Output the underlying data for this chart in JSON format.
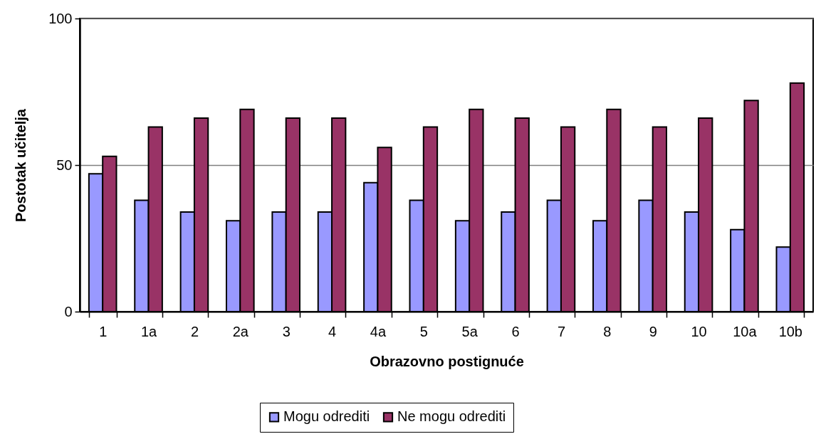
{
  "chart_data": {
    "type": "bar",
    "xlabel": "Obrazovno postignuće",
    "ylabel": "Postotak učitelja",
    "categories": [
      "1",
      "1a",
      "2",
      "2a",
      "3",
      "4",
      "4a",
      "5",
      "5a",
      "6",
      "7",
      "8",
      "9",
      "10",
      "10a",
      "10b"
    ],
    "series": [
      {
        "name": "Mogu odrediti",
        "color": "#9999ff",
        "values": [
          47,
          38,
          34,
          31,
          34,
          34,
          44,
          38,
          31,
          34,
          38,
          31,
          38,
          34,
          28,
          22
        ]
      },
      {
        "name": "Ne mogu odrediti",
        "color": "#993366",
        "values": [
          53,
          63,
          66,
          69,
          66,
          66,
          56,
          63,
          69,
          66,
          63,
          69,
          63,
          66,
          72,
          78
        ]
      }
    ],
    "ylim": [
      0,
      100
    ],
    "yticks": [
      0,
      50,
      100
    ],
    "grid": "y",
    "legend": "bottom"
  }
}
